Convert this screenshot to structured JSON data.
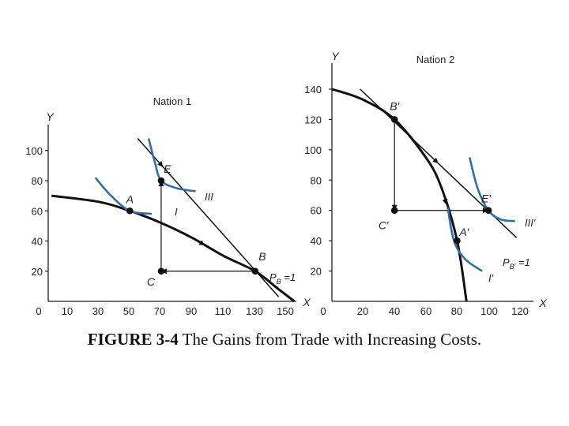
{
  "caption": {
    "number": "FIGURE 3-4",
    "text": " The Gains from Trade with Increasing Costs."
  },
  "colors": {
    "curve": "#111111",
    "indifference": "#2e6fa7",
    "axis": "#231f20"
  },
  "chart_data": [
    {
      "type": "line",
      "title": "Nation 1",
      "xlabel": "X",
      "ylabel": "Y",
      "x_ticks": [
        "0",
        "10",
        "30",
        "50",
        "70",
        "90",
        "110",
        "130",
        "150"
      ],
      "y_ticks": [
        "20",
        "40",
        "60",
        "80",
        "100"
      ],
      "ylim": [
        0,
        110
      ],
      "production_frontier": [
        [
          0,
          70
        ],
        [
          30,
          66
        ],
        [
          50,
          60
        ],
        [
          70,
          52
        ],
        [
          90,
          42
        ],
        [
          110,
          30
        ],
        [
          130,
          20
        ],
        [
          145,
          8
        ],
        [
          155,
          0
        ]
      ],
      "trade_line": [
        [
          55,
          108
        ],
        [
          70,
          80
        ],
        [
          130,
          20
        ],
        [
          145,
          3
        ]
      ],
      "trade_triangle": {
        "from": [
          130,
          20
        ],
        "corner": [
          70,
          20
        ],
        "to": [
          70,
          80
        ]
      },
      "indifference_curves": [
        {
          "name": "I",
          "points": [
            [
              28,
              82
            ],
            [
              38,
              70
            ],
            [
              50,
              60
            ],
            [
              64,
              58
            ]
          ]
        },
        {
          "name": "III",
          "points": [
            [
              62,
              108
            ],
            [
              66,
              92
            ],
            [
              70,
              80
            ],
            [
              80,
              75
            ],
            [
              92,
              73
            ]
          ]
        }
      ],
      "points": [
        {
          "label": "A",
          "x": 50,
          "y": 60
        },
        {
          "label": "B",
          "x": 130,
          "y": 20
        },
        {
          "label": "C",
          "x": 70,
          "y": 20
        },
        {
          "label": "E",
          "x": 70,
          "y": 80
        }
      ],
      "price_label": {
        "main": "P",
        "sub": "B",
        "suffix": " =1"
      }
    },
    {
      "type": "line",
      "title": "Nation 2",
      "xlabel": "X",
      "ylabel": "Y",
      "x_ticks": [
        "0",
        "20",
        "40",
        "60",
        "80",
        "100",
        "120"
      ],
      "y_ticks": [
        "20",
        "40",
        "60",
        "80",
        "100",
        "120",
        "140"
      ],
      "ylim": [
        0,
        150
      ],
      "production_frontier": [
        [
          0,
          140
        ],
        [
          20,
          133
        ],
        [
          40,
          120
        ],
        [
          60,
          95
        ],
        [
          70,
          75
        ],
        [
          80,
          40
        ],
        [
          86,
          0
        ]
      ],
      "trade_line": [
        [
          18,
          140
        ],
        [
          40,
          120
        ],
        [
          100,
          60
        ],
        [
          118,
          42
        ]
      ],
      "trade_triangle": {
        "from": [
          40,
          120
        ],
        "corner": [
          40,
          60
        ],
        "to": [
          100,
          60
        ]
      },
      "indifference_curves": [
        {
          "name": "I′",
          "points": [
            [
              74,
              62
            ],
            [
              78,
              40
            ],
            [
              85,
              28
            ],
            [
              96,
              20
            ]
          ]
        },
        {
          "name": "III′",
          "points": [
            [
              88,
              95
            ],
            [
              93,
              75
            ],
            [
              100,
              60
            ],
            [
              108,
              54
            ],
            [
              117,
              53
            ]
          ]
        }
      ],
      "points": [
        {
          "label": "A′",
          "x": 80,
          "y": 40
        },
        {
          "label": "B′",
          "x": 40,
          "y": 120
        },
        {
          "label": "C′",
          "x": 40,
          "y": 60
        },
        {
          "label": "E′",
          "x": 100,
          "y": 60
        }
      ],
      "price_label": {
        "main": "P",
        "sub": "B′",
        "suffix": " =1"
      }
    }
  ]
}
